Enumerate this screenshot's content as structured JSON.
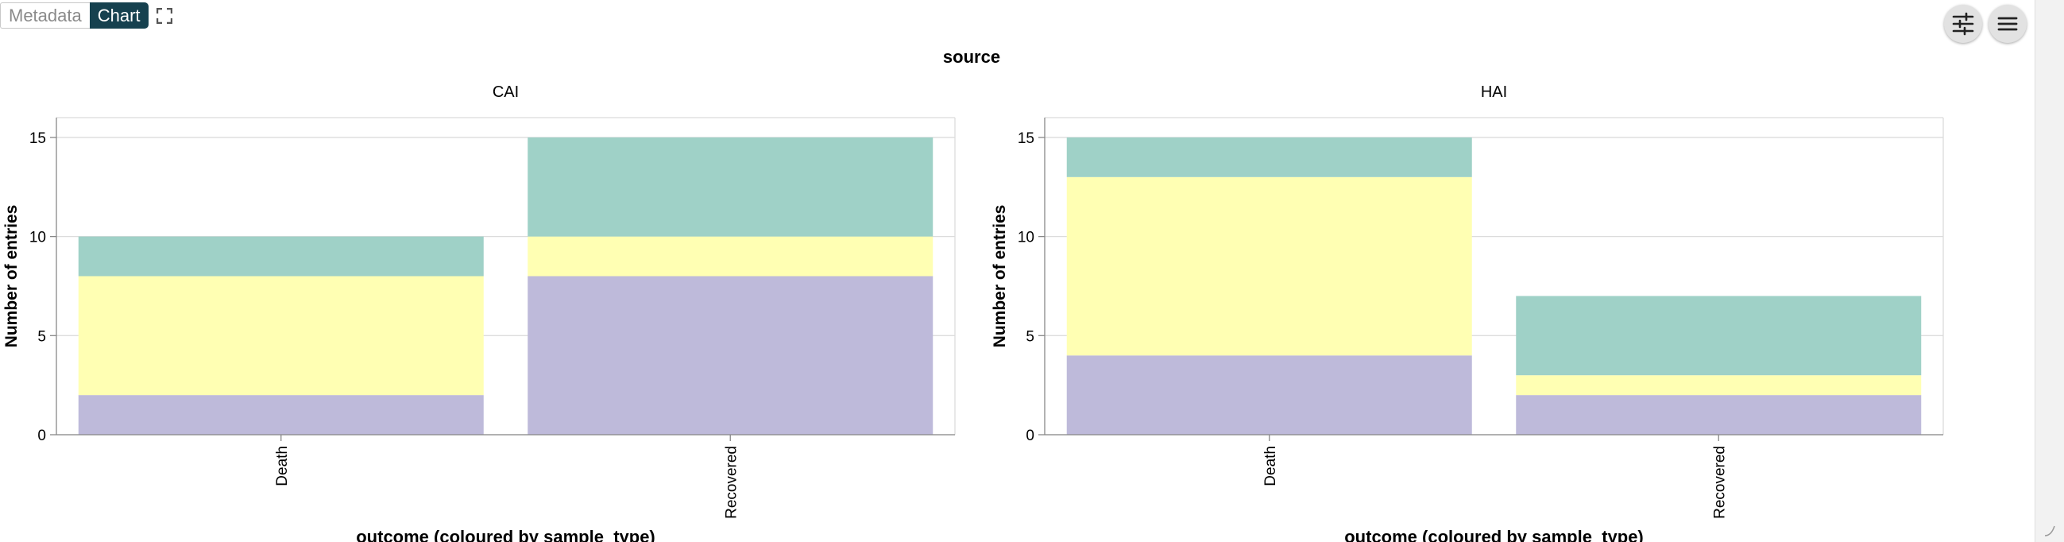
{
  "tabs": {
    "metadata_label": "Metadata",
    "chart_label": "Chart"
  },
  "icons": {
    "expand": "fullscreen-expand-icon",
    "settings": "sliders-icon",
    "menu": "hamburger-menu-icon"
  },
  "chart_data": {
    "type": "bar",
    "stacked": true,
    "title": "source",
    "facets": [
      {
        "name": "CAI",
        "categories": [
          "Death",
          "Recovered"
        ],
        "series": [
          {
            "color": "#bebada",
            "values": [
              2,
              8
            ]
          },
          {
            "color": "#ffffb3",
            "values": [
              6,
              2
            ]
          },
          {
            "color": "#9fd1c7",
            "values": [
              2,
              5
            ]
          }
        ]
      },
      {
        "name": "HAI",
        "categories": [
          "Death",
          "Recovered"
        ],
        "series": [
          {
            "color": "#bebada",
            "values": [
              4,
              2
            ]
          },
          {
            "color": "#ffffb3",
            "values": [
              9,
              1
            ]
          },
          {
            "color": "#9fd1c7",
            "values": [
              2,
              4
            ]
          }
        ]
      }
    ],
    "xlabel": "outcome (coloured by sample_type)",
    "ylabel": "Number of entries",
    "ylim": [
      0,
      16
    ],
    "yticks": [
      0,
      5,
      10,
      15
    ],
    "grid": true,
    "legend": "none"
  }
}
